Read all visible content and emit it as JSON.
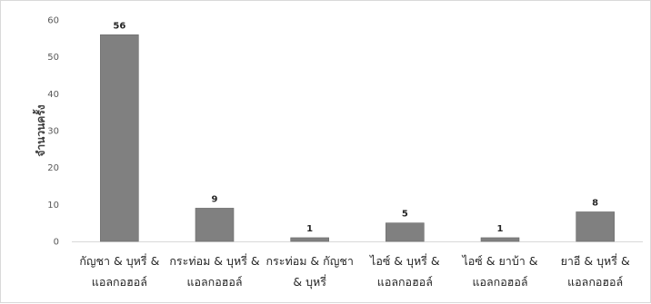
{
  "chart_data": {
    "type": "bar",
    "ylabel": "จำนวนครั้ง",
    "xlabel": "",
    "categories": [
      [
        "กัญชา & บุหรี่ &",
        "แอลกอฮอล์"
      ],
      [
        "กระท่อม & บุหรี่ &",
        "แอลกอฮอล์"
      ],
      [
        "กระท่อม & กัญชา",
        "& บุหรี่"
      ],
      [
        "ไอซ์ & บุหรี่ &",
        "แอลกอฮอล์"
      ],
      [
        "ไอซ์ & ยาบ้า &",
        "แอลกอฮอล์"
      ],
      [
        "ยาอี & บุหรี่ &",
        "แอลกอฮอล์"
      ]
    ],
    "values": [
      56,
      9,
      1,
      5,
      1,
      8
    ],
    "ylim": [
      0,
      60
    ],
    "yticks": [
      0,
      10,
      20,
      30,
      40,
      50,
      60
    ],
    "grid": false,
    "legend": "none",
    "bar_color": "#808080",
    "bar_edge_color": "#6b6b6b",
    "axis_color": "#d9d9d9"
  }
}
